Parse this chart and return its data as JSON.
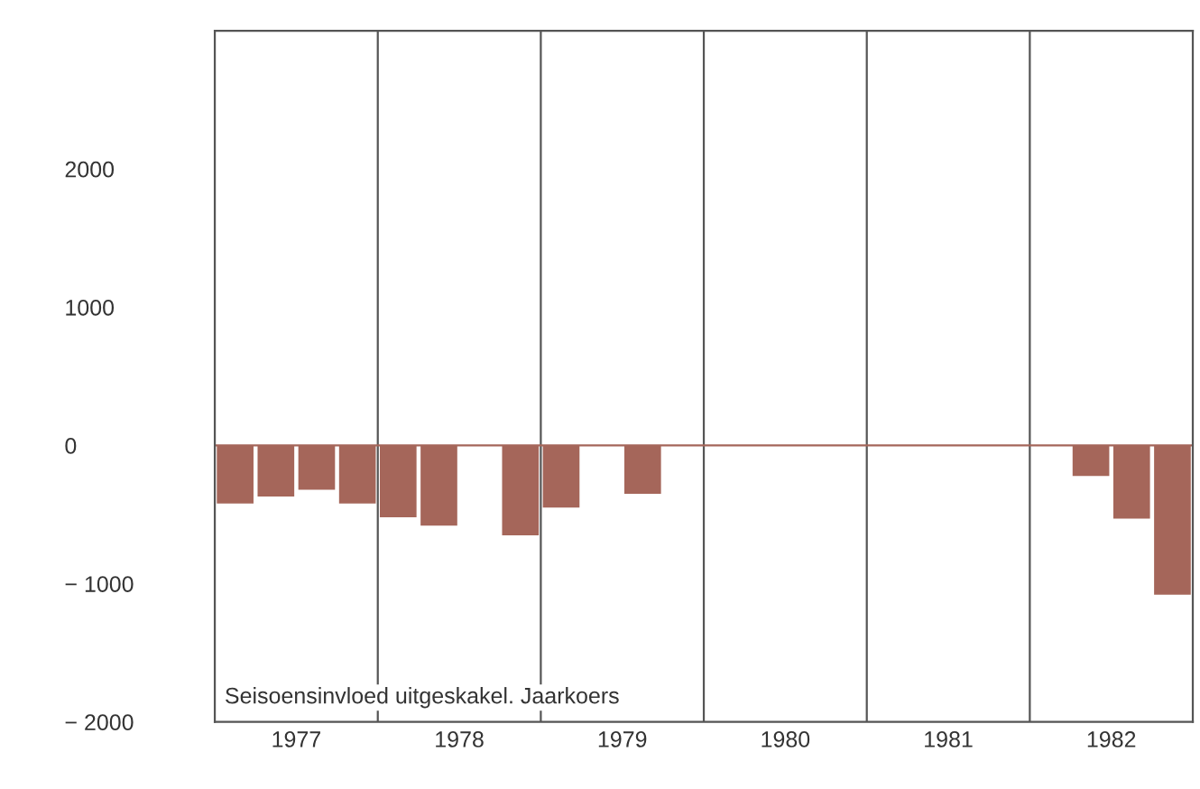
{
  "chart_data": {
    "type": "bar",
    "x": [
      1977.125,
      1977.375,
      1977.625,
      1977.875,
      1978.125,
      1978.375,
      1978.625,
      1978.875,
      1979.125,
      1979.375,
      1979.625,
      1979.875,
      1980.125,
      1980.375,
      1980.625,
      1980.875,
      1981.125,
      1981.375,
      1981.625,
      1981.875,
      1982.125,
      1982.375,
      1982.625,
      1982.875
    ],
    "values": [
      -420,
      -370,
      -320,
      -420,
      -520,
      -580,
      null,
      -650,
      -450,
      null,
      -350,
      null,
      null,
      null,
      null,
      null,
      null,
      null,
      null,
      null,
      null,
      -220,
      -530,
      -1080
    ],
    "color": "#a5665a",
    "xlim": [
      1977,
      1983
    ],
    "xticks": [
      {
        "value": 1977.5,
        "label": "1977"
      },
      {
        "value": 1978.5,
        "label": "1978"
      },
      {
        "value": 1979.5,
        "label": "1979"
      },
      {
        "value": 1980.5,
        "label": "1980"
      },
      {
        "value": 1981.5,
        "label": "1981"
      },
      {
        "value": 1982.5,
        "label": "1982"
      }
    ],
    "ylim": [
      -2000,
      3000
    ],
    "yticks": [
      {
        "value": -2000,
        "label": "− 2000"
      },
      {
        "value": -1000,
        "label": "− 1000"
      },
      0,
      1000,
      2000
    ],
    "ref_lines": [
      {
        "axis": "x",
        "value": 1978,
        "color": "#555555"
      },
      {
        "axis": "x",
        "value": 1979,
        "color": "#555555"
      },
      {
        "axis": "x",
        "value": 1980,
        "color": "#555555"
      },
      {
        "axis": "x",
        "value": 1981,
        "color": "#555555"
      },
      {
        "axis": "x",
        "value": 1982,
        "color": "#555555"
      },
      {
        "axis": "y",
        "value": 0,
        "color": "#a5665a"
      }
    ],
    "annotations": [
      "Seisoensinvloed uitgeskakel. Jaarkoers"
    ],
    "grid": false
  }
}
